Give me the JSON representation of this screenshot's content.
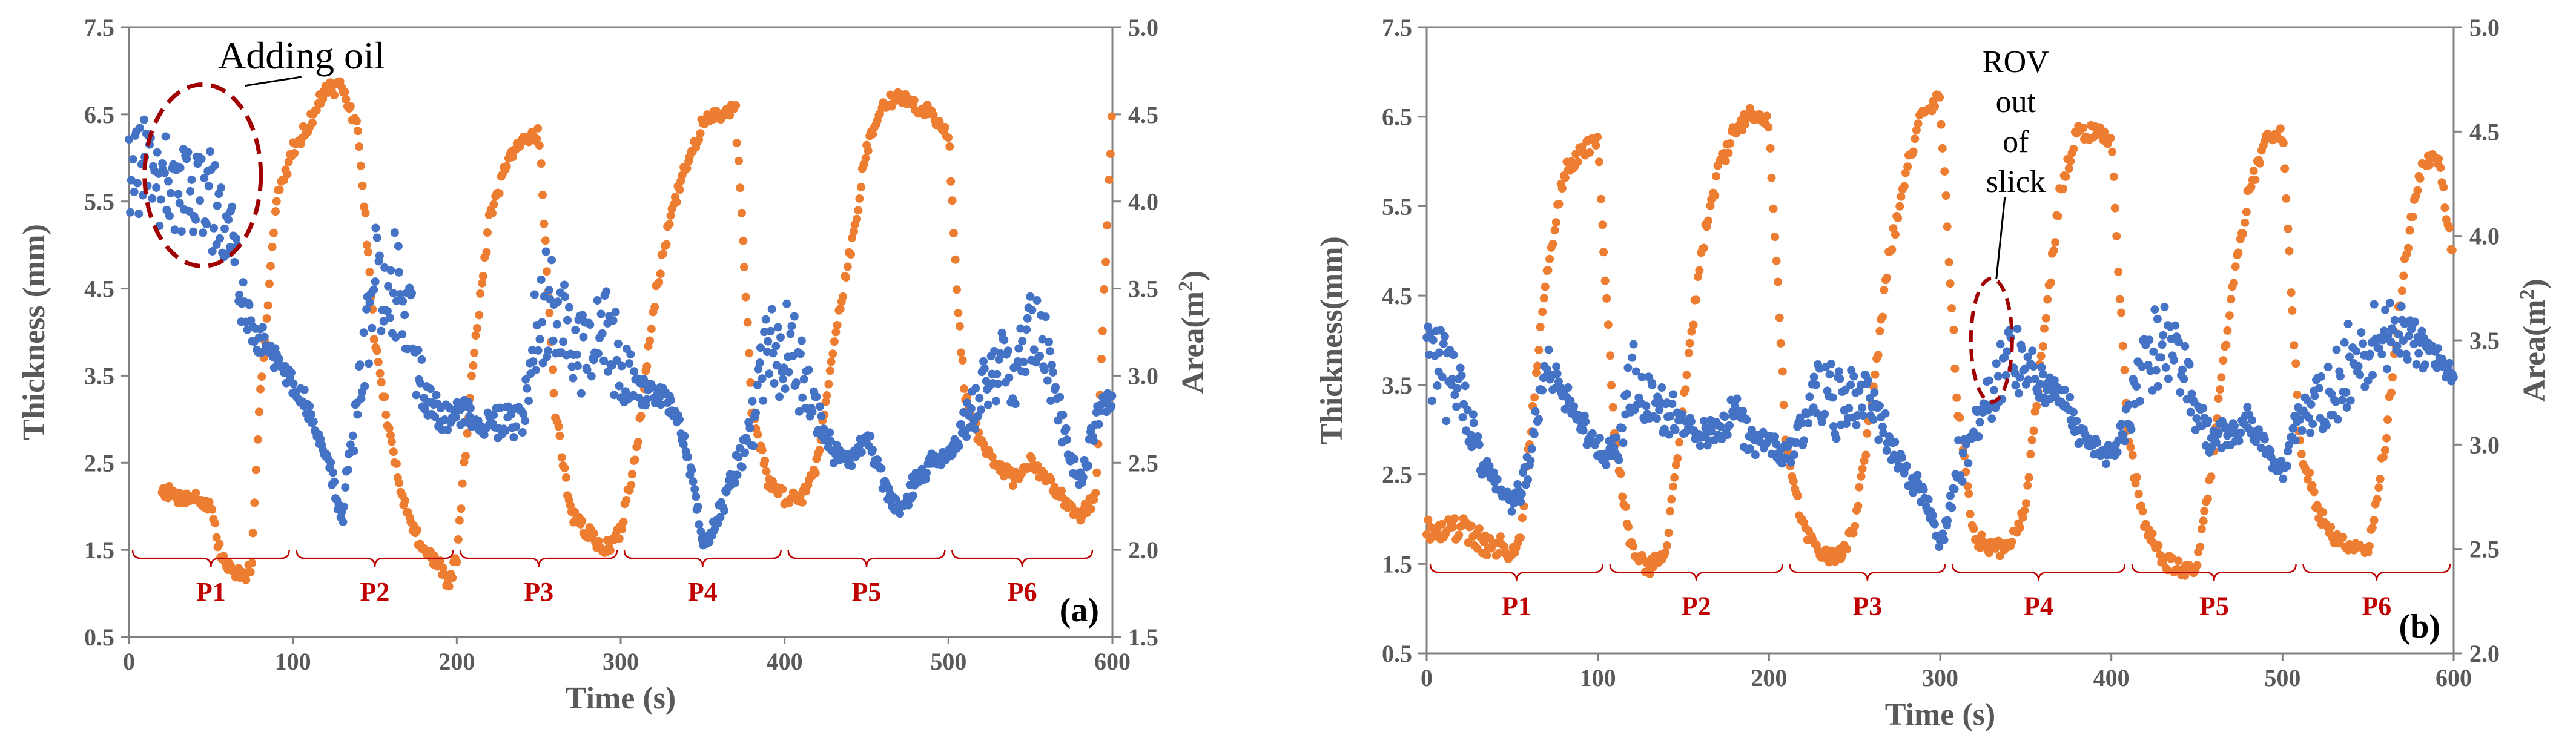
{
  "chart_data": [
    {
      "type": "scatter",
      "panel_label": "(a)",
      "xlabel": "Time (s)",
      "ylabel": "Thickness (mm)",
      "y2label_main": "Area(m",
      "y2label_sup": "2",
      "y2label_end": ")",
      "xlim": [
        0,
        600
      ],
      "ylim": [
        0.5,
        7.5
      ],
      "y2lim": [
        1.5,
        5.0
      ],
      "x_ticks": [
        0,
        100,
        200,
        300,
        400,
        500,
        600
      ],
      "x_tick_labels": [
        "0",
        "100",
        "200",
        "300",
        "400",
        "500",
        "600"
      ],
      "y_ticks": [
        0.5,
        1.5,
        2.5,
        3.5,
        4.5,
        5.5,
        6.5,
        7.5
      ],
      "y_tick_labels": [
        "0.5",
        "1.5",
        "2.5",
        "3.5",
        "4.5",
        "5.5",
        "6.5",
        "7.5"
      ],
      "y2_ticks": [
        1.5,
        2.0,
        2.5,
        3.0,
        3.5,
        4.0,
        4.5,
        5.0
      ],
      "y2_tick_labels": [
        "1.5",
        "2.0",
        "2.5",
        "3.0",
        "3.5",
        "4.0",
        "4.5",
        "5.0"
      ],
      "series": [
        {
          "name": "Thickness",
          "axis": "left",
          "color": "#4472c4",
          "x": [
            0,
            10,
            20,
            30,
            40,
            50,
            60,
            70,
            80,
            90,
            100,
            110,
            120,
            130,
            140,
            150,
            160,
            170,
            180,
            190,
            200,
            210,
            220,
            230,
            240,
            250,
            260,
            270,
            280,
            290,
            300,
            310,
            320,
            330,
            340,
            350,
            360,
            370,
            380,
            390,
            400,
            410,
            420,
            430,
            440,
            450,
            460,
            470,
            480,
            490,
            500,
            510,
            520,
            530,
            540,
            550,
            560,
            570,
            580,
            590,
            600
          ],
          "y": [
            5.8,
            5.9,
            5.7,
            5.6,
            5.8,
            5.5,
            5.3,
            4.3,
            3.9,
            3.7,
            3.4,
            3.1,
            2.6,
            1.9,
            3.2,
            4.6,
            4.7,
            4.1,
            3.3,
            3.0,
            3.1,
            3.0,
            2.9,
            3.0,
            3.0,
            4.4,
            4.2,
            3.9,
            3.7,
            4.1,
            3.6,
            3.4,
            3.3,
            3.2,
            2.7,
            1.6,
            1.9,
            2.4,
            2.9,
            3.8,
            3.9,
            3.5,
            3.0,
            2.6,
            2.5,
            2.8,
            2.3,
            1.9,
            2.3,
            2.5,
            2.6,
            2.9,
            3.4,
            3.7,
            3.5,
            4.1,
            3.7,
            2.9,
            2.2,
            3.0,
            3.2
          ],
          "scatter_amplitude": [
            0.6,
            0.6,
            0.6,
            0.6,
            0.6,
            0.6,
            0.5,
            0.3,
            0.15,
            0.1,
            0.1,
            0.1,
            0.1,
            0.1,
            0.4,
            0.7,
            0.7,
            0.6,
            0.3,
            0.15,
            0.15,
            0.15,
            0.15,
            0.15,
            0.2,
            0.7,
            0.6,
            0.5,
            0.5,
            0.5,
            0.5,
            0.2,
            0.1,
            0.1,
            0.1,
            0.1,
            0.1,
            0.15,
            0.3,
            0.6,
            0.6,
            0.5,
            0.2,
            0.1,
            0.1,
            0.1,
            0.1,
            0.1,
            0.1,
            0.1,
            0.1,
            0.2,
            0.4,
            0.5,
            0.4,
            0.5,
            0.4,
            0.2,
            0.1,
            0.2,
            0.1
          ]
        },
        {
          "name": "Area",
          "axis": "right",
          "color": "#ed7d31",
          "x": [
            20,
            30,
            40,
            50,
            55,
            60,
            70,
            75,
            80,
            90,
            100,
            110,
            120,
            130,
            140,
            150,
            160,
            170,
            180,
            190,
            195,
            200,
            210,
            220,
            230,
            240,
            250,
            260,
            270,
            280,
            290,
            300,
            310,
            320,
            330,
            340,
            350,
            360,
            370,
            380,
            390,
            400,
            410,
            420,
            430,
            440,
            450,
            460,
            470,
            480,
            490,
            500,
            505,
            510,
            520,
            530,
            540,
            550,
            560,
            570,
            580,
            590,
            600
          ],
          "y": [
            2.35,
            2.3,
            2.3,
            2.25,
            2.0,
            1.9,
            1.85,
            1.9,
            2.9,
            4.0,
            4.3,
            4.45,
            4.65,
            4.65,
            4.4,
            3.2,
            2.6,
            2.2,
            2.0,
            1.9,
            1.8,
            1.95,
            3.1,
            3.9,
            4.2,
            4.35,
            4.4,
            2.8,
            2.2,
            2.1,
            2.0,
            2.1,
            2.6,
            3.4,
            3.9,
            4.2,
            4.45,
            4.5,
            4.55,
            2.8,
            2.4,
            2.3,
            2.3,
            2.5,
            3.2,
            3.7,
            4.3,
            4.55,
            4.6,
            4.55,
            4.5,
            4.4,
            3.5,
            2.9,
            2.6,
            2.5,
            2.4,
            2.5,
            2.4,
            2.3,
            2.2,
            2.3,
            4.6
          ]
        }
      ],
      "periods": [
        {
          "label": "P1",
          "start": 0,
          "end": 100
        },
        {
          "label": "P2",
          "start": 100,
          "end": 200
        },
        {
          "label": "P3",
          "start": 200,
          "end": 300
        },
        {
          "label": "P4",
          "start": 300,
          "end": 400
        },
        {
          "label": "P5",
          "start": 400,
          "end": 500
        },
        {
          "label": "P6",
          "start": 500,
          "end": 590
        }
      ],
      "annotations": [
        {
          "text": "Adding oil",
          "points_to": {
            "x": 45,
            "y": 5.8
          }
        }
      ]
    },
    {
      "type": "scatter",
      "panel_label": "(b)",
      "xlabel": "Time (s)",
      "ylabel": "Thickness(mm)",
      "y2label_main": "Area(m",
      "y2label_sup": "2",
      "y2label_end": ")",
      "xlim": [
        0,
        600
      ],
      "ylim": [
        0.5,
        7.5
      ],
      "y2lim": [
        2.0,
        5.0
      ],
      "x_ticks": [
        0,
        100,
        200,
        300,
        400,
        500,
        600
      ],
      "x_tick_labels": [
        "0",
        "100",
        "200",
        "300",
        "400",
        "500",
        "600"
      ],
      "y_ticks": [
        0.5,
        1.5,
        2.5,
        3.5,
        4.5,
        5.5,
        6.5,
        7.5
      ],
      "y_tick_labels": [
        "0.5",
        "1.5",
        "2.5",
        "3.5",
        "4.5",
        "5.5",
        "6.5",
        "7.5"
      ],
      "y2_ticks": [
        2.0,
        2.5,
        3.0,
        3.5,
        4.0,
        4.5,
        5.0
      ],
      "y2_tick_labels": [
        "2.0",
        "2.5",
        "3.0",
        "3.5",
        "4.0",
        "4.5",
        "5.0"
      ],
      "series": [
        {
          "name": "Thickness",
          "axis": "left",
          "color": "#4472c4",
          "x": [
            0,
            10,
            20,
            30,
            40,
            50,
            60,
            70,
            80,
            90,
            100,
            110,
            120,
            130,
            140,
            150,
            160,
            170,
            180,
            190,
            200,
            210,
            220,
            230,
            240,
            250,
            260,
            270,
            280,
            290,
            300,
            310,
            320,
            330,
            340,
            350,
            360,
            370,
            380,
            390,
            400,
            410,
            420,
            430,
            440,
            450,
            460,
            470,
            480,
            490,
            500,
            510,
            520,
            530,
            540,
            550,
            560,
            570,
            580,
            590,
            600
          ],
          "y": [
            3.8,
            3.6,
            3.3,
            2.7,
            2.4,
            2.2,
            2.6,
            3.8,
            3.4,
            3.1,
            2.8,
            2.7,
            3.6,
            3.3,
            3.2,
            3.0,
            2.9,
            3.0,
            3.2,
            2.8,
            2.9,
            2.7,
            3.0,
            3.5,
            3.3,
            3.4,
            3.2,
            2.9,
            2.5,
            2.3,
            1.7,
            2.6,
            3.0,
            3.4,
            3.9,
            3.7,
            3.5,
            3.4,
            3.0,
            2.8,
            2.7,
            3.1,
            3.8,
            4.0,
            3.7,
            3.2,
            2.9,
            3.0,
            3.1,
            2.8,
            2.5,
            3.2,
            3.3,
            3.4,
            3.8,
            3.9,
            4.0,
            4.1,
            3.9,
            3.8,
            3.6
          ],
          "scatter_amplitude": [
            0.5,
            0.5,
            0.4,
            0.2,
            0.1,
            0.1,
            0.2,
            0.2,
            0.15,
            0.1,
            0.1,
            0.2,
            0.4,
            0.3,
            0.3,
            0.2,
            0.15,
            0.15,
            0.2,
            0.15,
            0.1,
            0.1,
            0.2,
            0.4,
            0.4,
            0.4,
            0.3,
            0.15,
            0.1,
            0.1,
            0.1,
            0.3,
            0.2,
            0.3,
            0.4,
            0.3,
            0.2,
            0.2,
            0.15,
            0.1,
            0.1,
            0.2,
            0.4,
            0.5,
            0.4,
            0.3,
            0.15,
            0.15,
            0.15,
            0.1,
            0.1,
            0.2,
            0.3,
            0.4,
            0.5,
            0.5,
            0.4,
            0.3,
            0.2,
            0.15,
            0.1
          ]
        },
        {
          "name": "Area",
          "axis": "right",
          "color": "#ed7d31",
          "x": [
            0,
            10,
            20,
            30,
            40,
            50,
            55,
            60,
            70,
            80,
            90,
            100,
            110,
            120,
            130,
            140,
            150,
            160,
            170,
            180,
            190,
            200,
            210,
            220,
            230,
            240,
            250,
            260,
            270,
            280,
            290,
            300,
            310,
            320,
            330,
            340,
            350,
            360,
            370,
            380,
            390,
            400,
            410,
            420,
            430,
            440,
            450,
            460,
            470,
            480,
            490,
            500,
            510,
            520,
            530,
            540,
            550,
            560,
            570,
            580,
            590,
            600
          ],
          "y": [
            2.6,
            2.6,
            2.6,
            2.55,
            2.5,
            2.5,
            2.55,
            3.0,
            3.8,
            4.3,
            4.4,
            4.45,
            3.0,
            2.5,
            2.4,
            2.5,
            3.2,
            3.9,
            4.3,
            4.5,
            4.6,
            4.55,
            3.0,
            2.6,
            2.5,
            2.45,
            2.6,
            3.2,
            3.9,
            4.3,
            4.6,
            4.65,
            3.2,
            2.55,
            2.5,
            2.5,
            2.7,
            3.5,
            4.2,
            4.5,
            4.5,
            4.45,
            3.0,
            2.6,
            2.45,
            2.4,
            2.4,
            3.0,
            3.7,
            4.2,
            4.45,
            4.5,
            3.0,
            2.7,
            2.55,
            2.5,
            2.5,
            3.0,
            3.8,
            4.3,
            4.4,
            3.9
          ],
          "scatter_amplitude": [
            0.06,
            0.06,
            0.06,
            0.06,
            0.06,
            0.06,
            0.04,
            0.04,
            0.04,
            0.04,
            0.04,
            0.04,
            0.04,
            0.04,
            0.04,
            0.04,
            0.04,
            0.04,
            0.04,
            0.04,
            0.04,
            0.04,
            0.04,
            0.04,
            0.04,
            0.04,
            0.04,
            0.04,
            0.04,
            0.04,
            0.04,
            0.04,
            0.04,
            0.04,
            0.04,
            0.04,
            0.04,
            0.04,
            0.04,
            0.04,
            0.04,
            0.04,
            0.04,
            0.04,
            0.04,
            0.04,
            0.04,
            0.04,
            0.04,
            0.04,
            0.04,
            0.04,
            0.04,
            0.04,
            0.04,
            0.04,
            0.04,
            0.04,
            0.04,
            0.04,
            0.04,
            0.04
          ]
        }
      ],
      "periods": [
        {
          "label": "P1",
          "start": 0,
          "end": 105
        },
        {
          "label": "P2",
          "start": 105,
          "end": 210
        },
        {
          "label": "P3",
          "start": 210,
          "end": 305
        },
        {
          "label": "P4",
          "start": 305,
          "end": 410
        },
        {
          "label": "P5",
          "start": 410,
          "end": 510
        },
        {
          "label": "P6",
          "start": 510,
          "end": 600
        }
      ],
      "annotations": [
        {
          "text_lines": [
            "ROV",
            "out",
            "of",
            "slick"
          ],
          "points_to": {
            "x": 330,
            "y": 4.0
          }
        }
      ]
    }
  ]
}
